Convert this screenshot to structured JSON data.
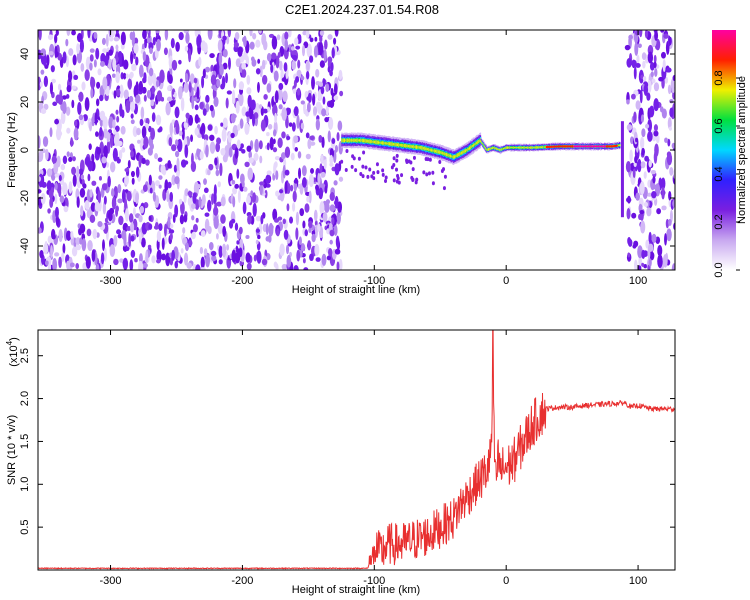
{
  "figure_title": "C2E1.2024.237.01.54.R08",
  "chart_data": [
    {
      "type": "heatmap",
      "title": "C2E1.2024.237.01.54.R08",
      "xlabel": "Height of straight line (km)",
      "ylabel": "Frequency (Hz)",
      "xlim": [
        -355,
        128
      ],
      "ylim": [
        -50,
        50
      ],
      "x_ticks": [
        -300,
        -200,
        -100,
        0,
        100
      ],
      "y_ticks": [
        -40,
        -20,
        0,
        20,
        40
      ],
      "colorbar": {
        "label": "Normalized spectral amplitude",
        "range": [
          0,
          1
        ],
        "ticks": [
          0.0,
          0.2,
          0.4,
          0.6,
          0.8
        ],
        "colors": [
          "#ffffff",
          "#c8a8f0",
          "#7a1fe0",
          "#3020ff",
          "#00d8ff",
          "#00e040",
          "#f0f000",
          "#ff2000",
          "#ff00a0"
        ]
      },
      "regions": [
        {
          "x": [
            -355,
            -125
          ],
          "content": "broadband noise"
        },
        {
          "x": [
            -125,
            88
          ],
          "content": "narrow signal near 0 Hz"
        },
        {
          "x": [
            92,
            128
          ],
          "content": "broadband noise"
        }
      ],
      "signal_ridge": {
        "x": [
          -125,
          -110,
          -95,
          -80,
          -65,
          -50,
          -40,
          -30,
          -25,
          -20,
          -15,
          -10,
          -5,
          0,
          20,
          40,
          60,
          80,
          86
        ],
        "y": [
          4,
          4,
          3,
          2,
          1,
          -1,
          -3,
          0,
          2,
          4,
          0,
          1,
          0,
          1,
          1,
          1.5,
          1.5,
          1.5,
          2
        ]
      }
    },
    {
      "type": "line",
      "xlabel": "Height of straight line (km)",
      "ylabel": "SNR (10 * v/v)",
      "y_scale_label": "(x10",
      "y_scale_exponent": "4",
      "xlim": [
        -355,
        128
      ],
      "ylim": [
        0,
        2.8
      ],
      "x_ticks": [
        -300,
        -200,
        -100,
        0,
        100
      ],
      "y_ticks": [
        0.5,
        1.0,
        1.5,
        2.0,
        2.5
      ],
      "series": [
        {
          "color": "#e83030",
          "x": [
            -355,
            -200,
            -105,
            -100,
            -95,
            -90,
            -80,
            -70,
            -60,
            -50,
            -45,
            -40,
            -35,
            -30,
            -25,
            -20,
            -15,
            -12,
            -10,
            -8,
            -6,
            -4,
            -2,
            0,
            5,
            10,
            15,
            20,
            25,
            30,
            40,
            50,
            60,
            70,
            80,
            90,
            95,
            100,
            110,
            128
          ],
          "y": [
            0.02,
            0.02,
            0.02,
            0.25,
            0.2,
            0.3,
            0.3,
            0.35,
            0.4,
            0.5,
            0.55,
            0.6,
            0.75,
            0.85,
            0.95,
            1.05,
            1.15,
            1.3,
            1.9,
            1.0,
            1.3,
            1.15,
            1.2,
            1.2,
            1.25,
            1.4,
            1.55,
            1.7,
            1.8,
            1.88,
            1.9,
            1.9,
            1.92,
            1.93,
            1.94,
            1.95,
            1.9,
            1.92,
            1.88,
            1.88
          ]
        }
      ]
    }
  ]
}
